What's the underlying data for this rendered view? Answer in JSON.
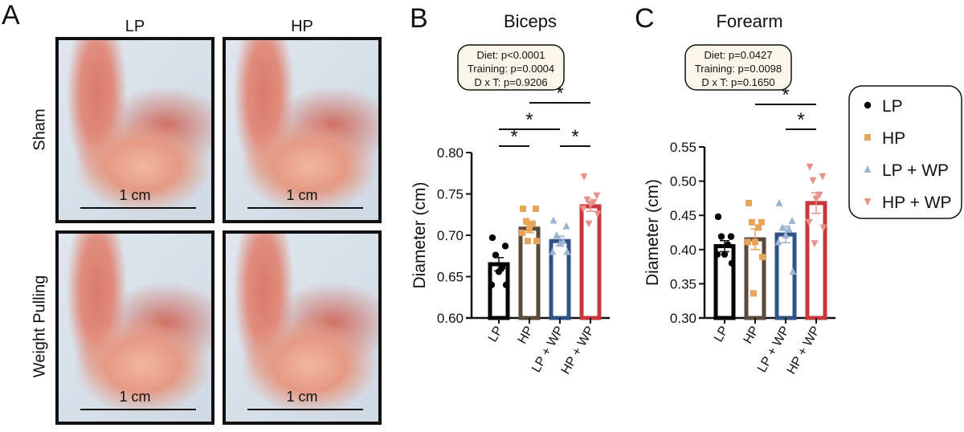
{
  "panel_a": {
    "letter": "A",
    "columns": [
      "LP",
      "HP"
    ],
    "rows": [
      "Sham",
      "Weight Pulling"
    ],
    "scale_label": "1 cm"
  },
  "colors": {
    "LP": "#000000",
    "HP": "#5a4a3a",
    "LP + WP": "#2f5385",
    "HP + WP": "#c8373a",
    "LP_pt": "#000000",
    "HP_pt": "#e8a55a",
    "LPWP_pt": "#9db3d4",
    "HPWP_pt": "#e8908c"
  },
  "legend": [
    "LP",
    "HP",
    "LP + WP",
    "HP + WP"
  ],
  "chart_data": [
    {
      "type": "bar",
      "letter": "B",
      "title": "Biceps",
      "ylabel": "Diameter (cm)",
      "ylim": [
        0.6,
        0.8
      ],
      "yticks": [
        "0.60",
        "0.65",
        "0.70",
        "0.75",
        "0.80"
      ],
      "categories": [
        "LP",
        "HP",
        "LP + WP",
        "HP + WP"
      ],
      "stats": [
        "Diet: p<0.0001",
        "Training: p=0.0004",
        "D x T: p=0.9206"
      ],
      "means": [
        0.665,
        0.708,
        0.693,
        0.735
      ],
      "sem": [
        0.008,
        0.005,
        0.006,
        0.006
      ],
      "points": [
        [
          0.697,
          0.687,
          0.676,
          0.661,
          0.656,
          0.64,
          0.64
        ],
        [
          0.732,
          0.732,
          0.717,
          0.714,
          0.708,
          0.703,
          0.693,
          0.693
        ],
        [
          0.718,
          0.711,
          0.7,
          0.693,
          0.69,
          0.68,
          0.68
        ],
        [
          0.771,
          0.748,
          0.743,
          0.74,
          0.737,
          0.732,
          0.726,
          0.714
        ]
      ],
      "significance": [
        {
          "from": 0,
          "to": 1,
          "label": "*"
        },
        {
          "from": 2,
          "to": 3,
          "label": "*"
        },
        {
          "from": 0,
          "to": 2,
          "label": "*"
        },
        {
          "from": 1,
          "to": 3,
          "label": "*"
        }
      ]
    },
    {
      "type": "bar",
      "letter": "C",
      "title": "Forearm",
      "ylabel": "Diameter (cm)",
      "ylim": [
        0.3,
        0.55
      ],
      "yticks": [
        "0.30",
        "0.35",
        "0.40",
        "0.45",
        "0.50",
        "0.55"
      ],
      "categories": [
        "LP",
        "HP",
        "LP + WP",
        "HP + WP"
      ],
      "stats": [
        "Diet: p=0.0427",
        "Training: p=0.0098",
        "D x T: p=0.1650"
      ],
      "means": [
        0.405,
        0.415,
        0.422,
        0.468
      ],
      "sem": [
        0.008,
        0.015,
        0.012,
        0.015
      ],
      "points": [
        [
          0.448,
          0.419,
          0.419,
          0.407,
          0.393,
          0.393,
          0.38
        ],
        [
          0.468,
          0.44,
          0.44,
          0.432,
          0.411,
          0.411,
          0.389,
          0.336
        ],
        [
          0.468,
          0.442,
          0.432,
          0.43,
          0.421,
          0.411,
          0.368
        ],
        [
          0.521,
          0.507,
          0.501,
          0.48,
          0.474,
          0.44,
          0.432,
          0.409
        ]
      ],
      "significance": [
        {
          "from": 2,
          "to": 3,
          "label": "*"
        },
        {
          "from": 1,
          "to": 3,
          "label": "*"
        }
      ]
    }
  ]
}
